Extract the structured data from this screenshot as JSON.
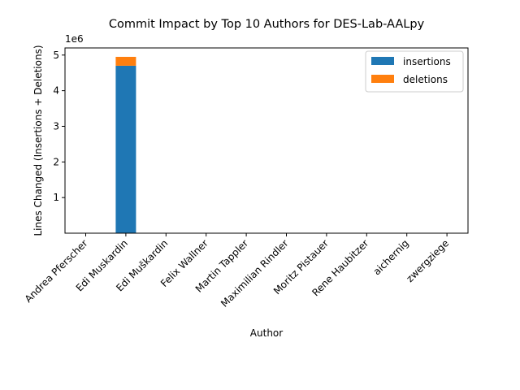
{
  "chart_data": {
    "type": "bar",
    "stacked": true,
    "title": "Commit Impact by Top 10 Authors for DES-Lab-AALpy",
    "xlabel": "Author",
    "ylabel": "Lines Changed (Insertions + Deletions)",
    "y_offset_label": "1e6",
    "y_scale": 1000000,
    "ylim": [
      0,
      5200000
    ],
    "yticks": [
      1,
      2,
      3,
      4,
      5
    ],
    "categories": [
      "Andrea Pferscher",
      "Edi Muskardin",
      "Edi Muškardin",
      "Felix Wallner",
      "Martin Tappler",
      "Maximilian Rindler",
      "Moritz Pistauer",
      "Rene Haubitzer",
      "aichernig",
      "zwergziege"
    ],
    "series": [
      {
        "name": "insertions",
        "color": "#1f77b4",
        "values": [
          1200,
          4700000,
          800,
          300,
          2000,
          500,
          400,
          600,
          1000,
          200
        ]
      },
      {
        "name": "deletions",
        "color": "#ff7f0e",
        "values": [
          300,
          250000,
          200,
          100,
          600,
          200,
          100,
          200,
          400,
          50
        ]
      }
    ],
    "grid": false,
    "legend_position": "upper right"
  }
}
